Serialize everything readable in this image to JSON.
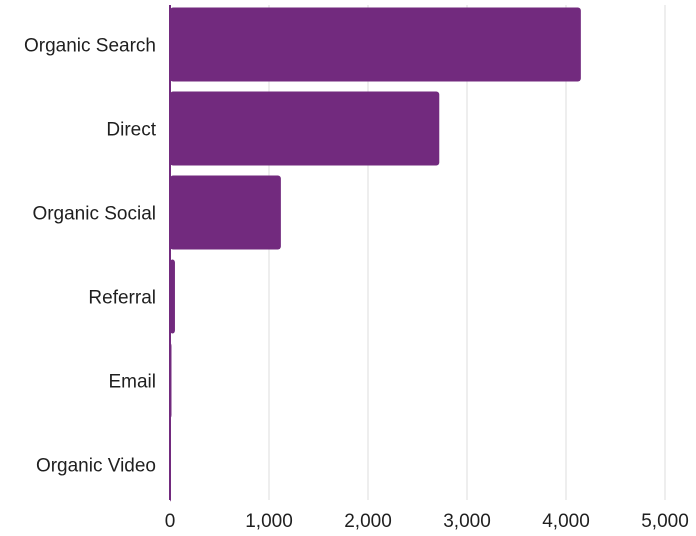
{
  "chart_data": {
    "type": "bar",
    "orientation": "horizontal",
    "categories": [
      "Organic Search",
      "Direct",
      "Organic Social",
      "Referral",
      "Email",
      "Organic Video"
    ],
    "values": [
      4150,
      2720,
      1120,
      50,
      15,
      5
    ],
    "x_ticks": [
      "0",
      "1,000",
      "2,000",
      "3,000",
      "4,000",
      "5,000"
    ],
    "xlim": [
      0,
      5000
    ],
    "grid": "vertical",
    "legend": "none",
    "bar_color": "#722a7e",
    "grid_color": "#dddddd"
  }
}
